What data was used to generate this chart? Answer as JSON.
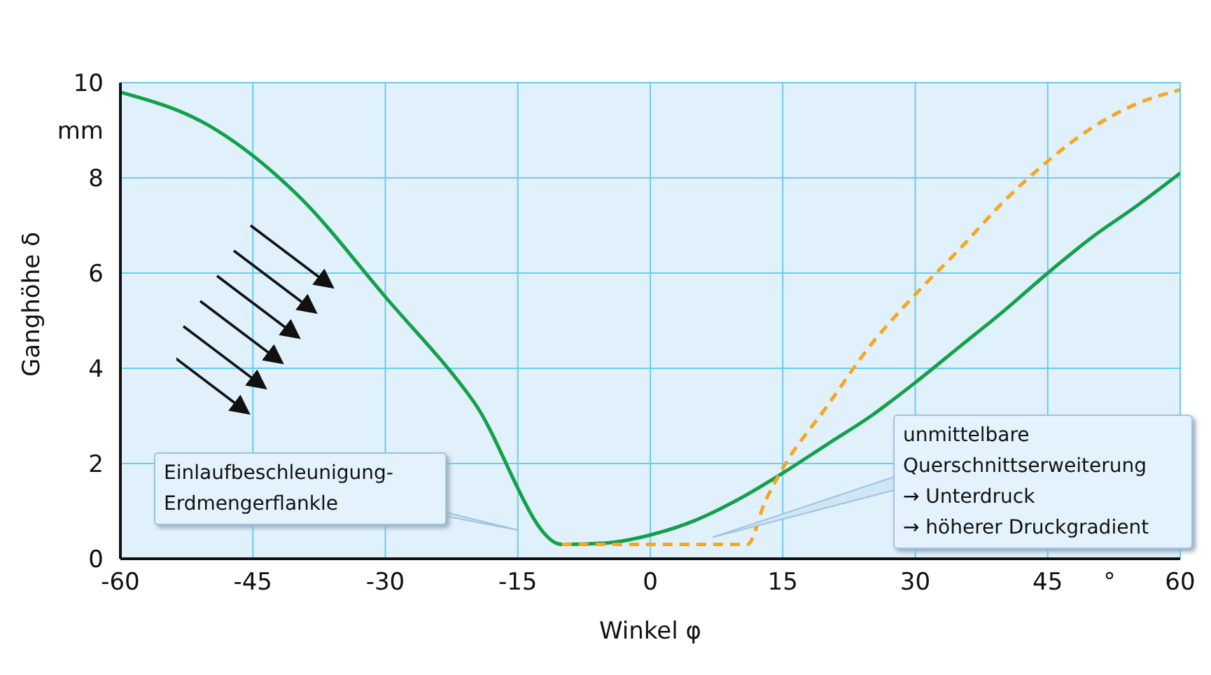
{
  "chart_data": {
    "type": "line",
    "xlabel": "Winkel φ",
    "ylabel": "Ganghöhe δ",
    "xlim": [
      -60,
      60
    ],
    "xticks": [
      -60,
      -45,
      -30,
      -15,
      0,
      15,
      30,
      45,
      {
        "value": 52,
        "label": "°"
      },
      60
    ],
    "ylim": [
      0,
      10
    ],
    "yticks": [
      0,
      2,
      4,
      6,
      8,
      {
        "value": 9,
        "label": "mm"
      },
      10
    ],
    "grid": true,
    "legend": false,
    "marker": "none",
    "series": [
      {
        "color": "#14a04a",
        "line_style": "solid",
        "x": [
          -60,
          -50,
          -40,
          -30,
          -20,
          -10,
          -5,
          0,
          5,
          10,
          15,
          20,
          25,
          30,
          35,
          40,
          45,
          50,
          55,
          60
        ],
        "values": [
          9.8,
          9.1,
          7.65,
          5.5,
          3.3,
          0.3,
          0.33,
          0.5,
          0.8,
          1.25,
          1.8,
          2.4,
          3.0,
          3.7,
          4.45,
          5.2,
          6.0,
          6.75,
          7.4,
          8.1
        ]
      },
      {
        "color": "#f5a623",
        "line_style": "dashed",
        "x": [
          -10,
          10,
          11,
          13,
          15,
          20,
          25,
          30,
          35,
          40,
          45,
          50,
          55,
          60
        ],
        "values": [
          0.3,
          0.3,
          0.3,
          1.2,
          1.9,
          3.2,
          4.5,
          5.55,
          6.5,
          7.5,
          8.35,
          9.05,
          9.55,
          9.85
        ]
      }
    ],
    "annotations": [
      "Einlaufbeschleunigung-\nErdmengerflankle",
      "unmittelbare\nQuerschnittserweiterung\n→ Unterdruck\n→ höherer Druckgradient"
    ]
  }
}
